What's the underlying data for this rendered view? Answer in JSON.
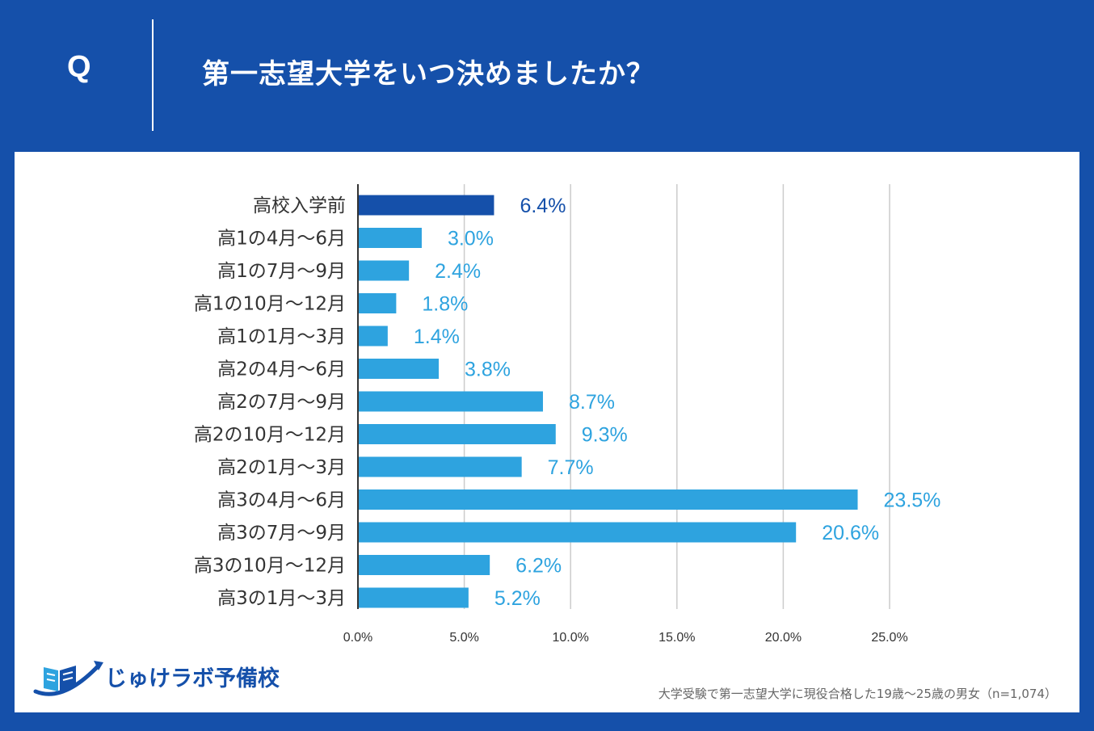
{
  "header": {
    "q_mark": "Q",
    "title": "第一志望大学をいつ決めましたか？"
  },
  "colors": {
    "header_bg": "#1550aa",
    "highlight_bar": "#1550aa",
    "bar": "#2ea3df",
    "grid": "#cccccc",
    "axis_label": "#333333"
  },
  "chart_data": {
    "type": "bar",
    "orientation": "horizontal",
    "categories": [
      "高校入学前",
      "高1の4月～6月",
      "高1の7月～9月",
      "高1の10月～12月",
      "高1の1月～3月",
      "高2の4月～6月",
      "高2の7月～9月",
      "高2の10月～12月",
      "高2の1月～3月",
      "高3の4月～6月",
      "高3の7月～9月",
      "高3の10月～12月",
      "高3の1月～3月"
    ],
    "values": [
      6.4,
      3.0,
      2.4,
      1.8,
      1.4,
      3.8,
      8.7,
      9.3,
      7.7,
      23.5,
      20.6,
      6.2,
      5.2
    ],
    "value_labels": [
      "6.4%",
      "3.0%",
      "2.4%",
      "1.8%",
      "1.4%",
      "3.8%",
      "8.7%",
      "9.3%",
      "7.7%",
      "23.5%",
      "20.6%",
      "6.2%",
      "5.2%"
    ],
    "highlight_index": 0,
    "xlim": [
      0,
      25
    ],
    "xticks": [
      0,
      5,
      10,
      15,
      20,
      25
    ],
    "xtick_labels": [
      "0.0%",
      "5.0%",
      "10.0%",
      "15.0%",
      "20.0%",
      "25.0%"
    ],
    "grid": true,
    "title": "",
    "xlabel": "",
    "ylabel": ""
  },
  "logo": {
    "text": "じゅけラボ予備校"
  },
  "footnote": "大学受験で第一志望大学に現役合格した19歳～25歳の男女（n=1,074）"
}
